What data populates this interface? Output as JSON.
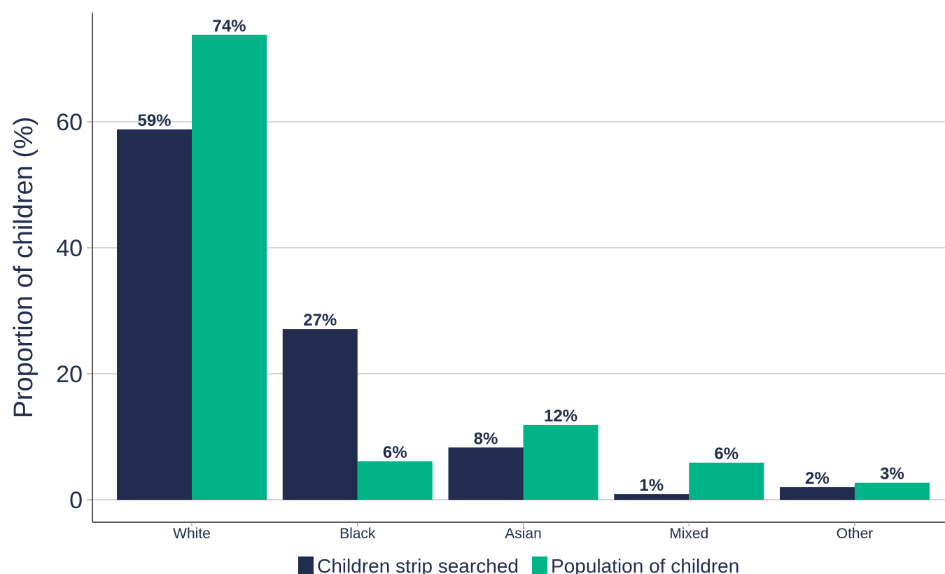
{
  "chart_data": {
    "type": "bar",
    "title": "",
    "xlabel": "",
    "ylabel": "Proportion of children (%)",
    "categories": [
      "White",
      "Black",
      "Asian",
      "Mixed",
      "Other"
    ],
    "series": [
      {
        "name": "Children strip searched",
        "color": "#222c4e",
        "values": [
          58.8,
          27.1,
          8.3,
          0.9,
          2.0
        ],
        "labels": [
          "59%",
          "27%",
          "8%",
          "1%",
          "2%"
        ]
      },
      {
        "name": "Population of children",
        "color": "#00b386",
        "values": [
          73.8,
          6.1,
          11.9,
          5.9,
          2.7
        ],
        "labels": [
          "74%",
          "6%",
          "12%",
          "6%",
          "3%"
        ]
      }
    ],
    "ylim": [
      -3.5,
      77.5
    ],
    "yticks": [
      0,
      20,
      40,
      60
    ],
    "grid": true,
    "legend_position": "bottom"
  }
}
